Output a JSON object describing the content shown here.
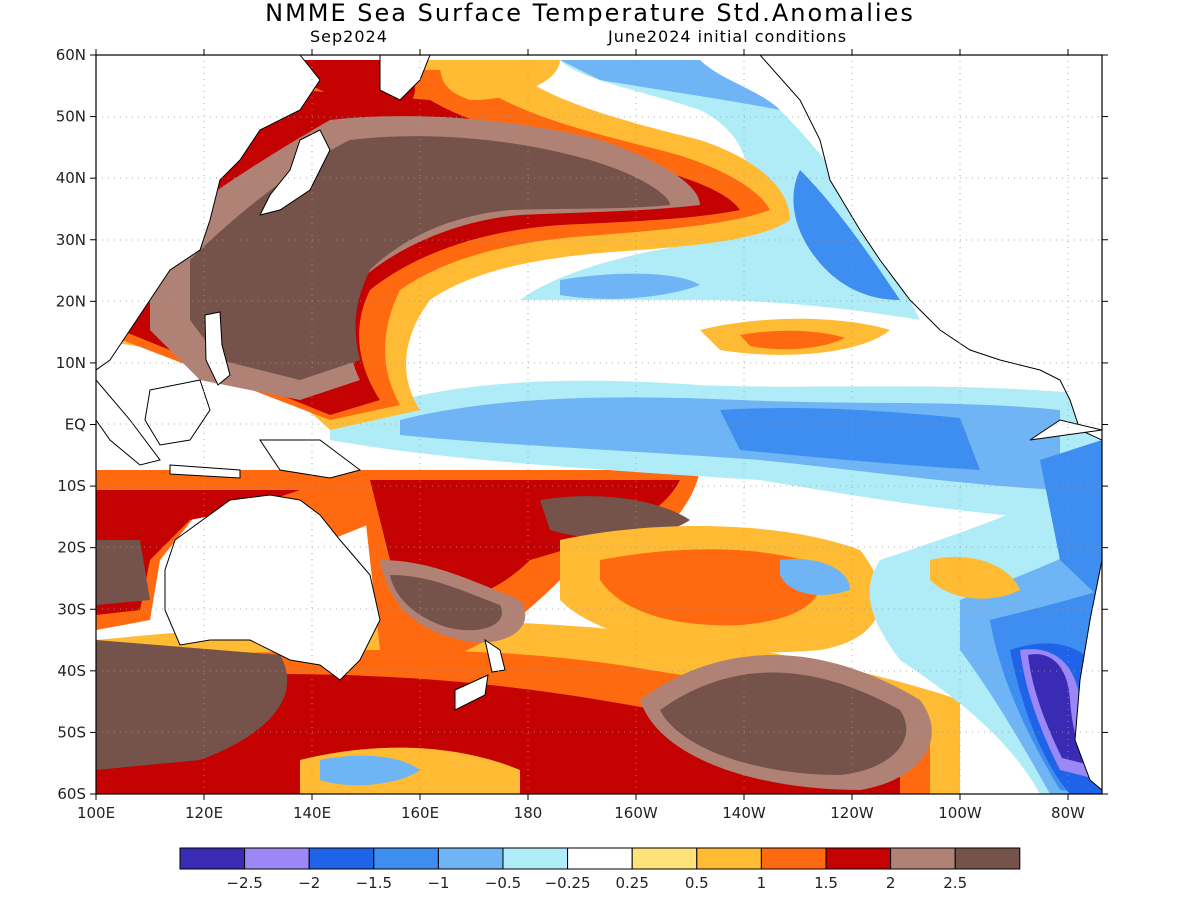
{
  "title": "NMME Sea Surface Temperature Std.Anomalies",
  "subtitle_left": "Sep2024",
  "subtitle_right": "June2024 initial conditions",
  "lat_labels": [
    "60N",
    "50N",
    "40N",
    "30N",
    "20N",
    "10N",
    "EQ",
    "10S",
    "20S",
    "30S",
    "40S",
    "50S",
    "60S"
  ],
  "lon_labels": [
    "100E",
    "120E",
    "140E",
    "160E",
    "180",
    "160W",
    "140W",
    "120W",
    "100W",
    "80W"
  ],
  "colorbar": {
    "colors": [
      "#3a2bb5",
      "#9b87f5",
      "#1f64e8",
      "#3d8ef0",
      "#6fb4f5",
      "#b0ecf7",
      "#ffffff",
      "#ffe27a",
      "#ffbb33",
      "#ff6a10",
      "#c40202",
      "#b08276",
      "#75524a"
    ],
    "labels": [
      "−2.5",
      "−2",
      "−1.5",
      "−1",
      "−0.5",
      "−0.25",
      "0.25",
      "0.5",
      "1",
      "1.5",
      "2",
      "2.5"
    ]
  }
}
